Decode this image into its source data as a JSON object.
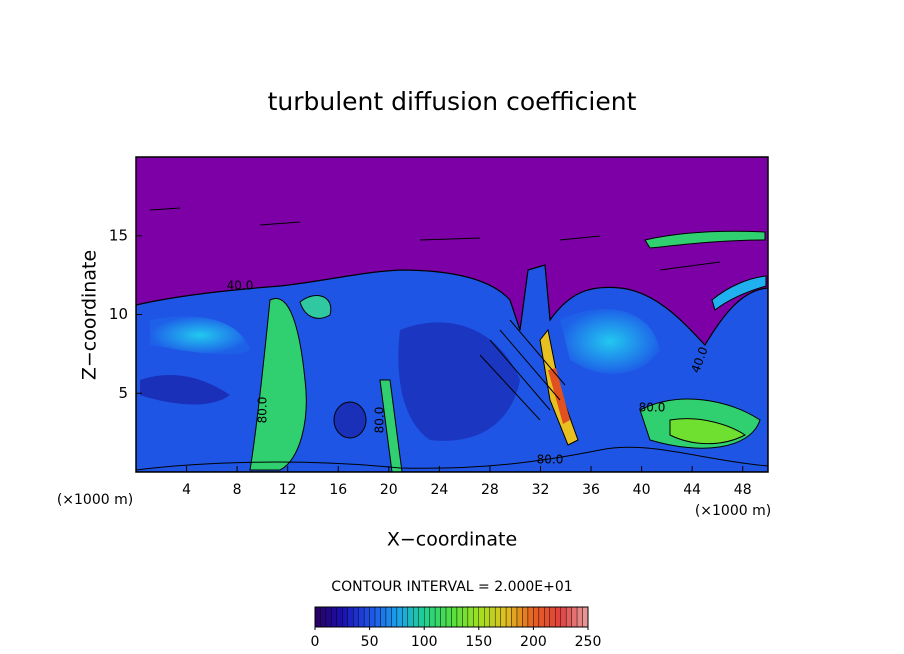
{
  "chart_data": {
    "type": "contour",
    "title": "turbulent diffusion coefficient",
    "x_label": "X−coordinate",
    "y_label": "Z−coordinate",
    "x_unit": "(×1000 m)",
    "y_unit": "(×1000 m)",
    "xlim": [
      0,
      50
    ],
    "xticks": [
      4,
      8,
      12,
      16,
      20,
      24,
      28,
      32,
      36,
      40,
      44,
      48
    ],
    "ylim": [
      0,
      20
    ],
    "yticks": [
      5,
      10,
      15
    ],
    "contour_interval_label": "CONTOUR INTERVAL = 2.000E+01",
    "contour_labels": [
      "40.0",
      "80.0",
      "80.0",
      "80.0",
      "40.0",
      "80.0"
    ],
    "colorbar": {
      "lim": [
        0,
        250
      ],
      "ticks": [
        0,
        50,
        100,
        150,
        200,
        250
      ],
      "colors": [
        "#2a0060",
        "#1a10b0",
        "#1e50e6",
        "#1aa0f0",
        "#20d090",
        "#50e040",
        "#a0e020",
        "#e0c020",
        "#e86020",
        "#e04040",
        "#e8a0a0"
      ]
    }
  }
}
